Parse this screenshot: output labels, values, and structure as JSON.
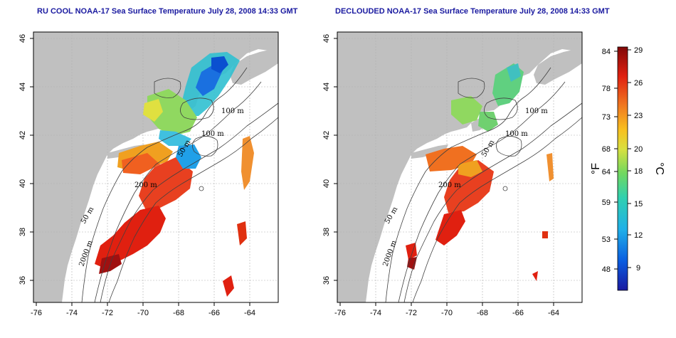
{
  "left_panel": {
    "title": "RU COOL NOAA-17 Sea Surface Temperature July 28, 2008 14:33 GMT"
  },
  "right_panel": {
    "title": "DECLOUDED NOAA-17 Sea Surface Temperature July 28, 2008 14:33 GMT"
  },
  "axes": {
    "lon_ticks": [
      "-76",
      "-74",
      "-72",
      "-70",
      "-68",
      "-66",
      "-64"
    ],
    "lat_ticks": [
      "36",
      "38",
      "40",
      "42",
      "44",
      "46"
    ]
  },
  "contour_labels": [
    "100 m",
    "100 m",
    "50 m",
    "200 m",
    "50 m",
    "2000 m"
  ],
  "colorbar": {
    "fahrenheit_ticks": [
      "84",
      "78",
      "73",
      "68",
      "64",
      "59",
      "53",
      "48"
    ],
    "celsius_ticks": [
      "29",
      "26",
      "23",
      "20",
      "18",
      "15",
      "12",
      "9"
    ],
    "fahrenheit_unit": "°F",
    "celsius_unit": "°C",
    "colors": [
      "#1a1aa0",
      "#0a4cd8",
      "#1aa0e8",
      "#2ad0c8",
      "#60d070",
      "#c8e040",
      "#f8d020",
      "#f8a020",
      "#f06020",
      "#e02010",
      "#a01010",
      "#800808"
    ]
  },
  "colors": {
    "land": "#c0c0c0",
    "title": "#1a1aa0",
    "grid": "#b0b0b0"
  }
}
